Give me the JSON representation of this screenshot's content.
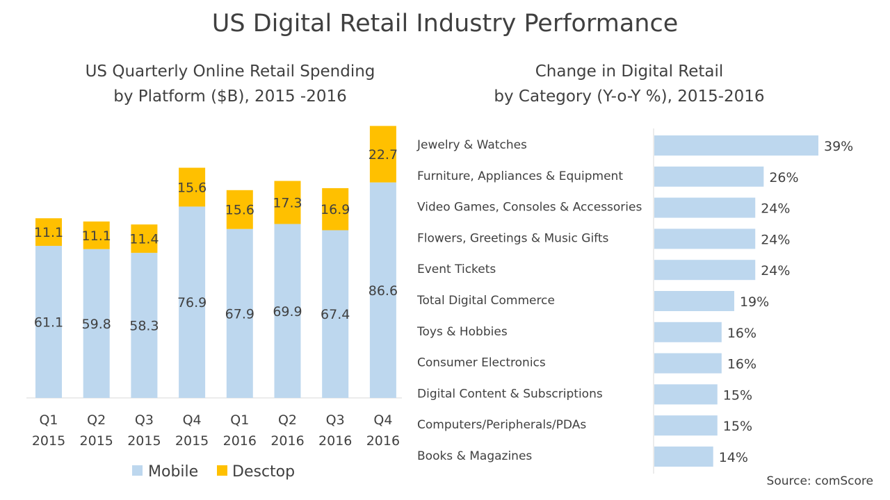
{
  "title": "US Digital Retail Industry Performance",
  "source": "Source: comScore",
  "colors": {
    "mobile": "#bdd7ee",
    "desktop": "#ffc000",
    "category_bar": "#bdd7ee",
    "text": "#404040",
    "axis": "#d9d9d9"
  },
  "chart_data": [
    {
      "type": "bar",
      "stacked": true,
      "title_lines": [
        "US Quarterly Online Retail Spending",
        "by Platform ($B), 2015 -2016"
      ],
      "categories": [
        [
          "Q1",
          "2015"
        ],
        [
          "Q2",
          "2015"
        ],
        [
          "Q3",
          "2015"
        ],
        [
          "Q4",
          "2015"
        ],
        [
          "Q1",
          "2016"
        ],
        [
          "Q2",
          "2016"
        ],
        [
          "Q3",
          "2016"
        ],
        [
          "Q4",
          "2016"
        ]
      ],
      "series": [
        {
          "name": "Mobile",
          "values": [
            61.1,
            59.8,
            58.3,
            76.9,
            67.9,
            69.9,
            67.4,
            86.6
          ]
        },
        {
          "name": "Desctop",
          "values": [
            11.1,
            11.1,
            11.4,
            15.6,
            15.6,
            17.3,
            16.9,
            22.7
          ]
        }
      ],
      "ylim": [
        0,
        120
      ],
      "legend": "bottom",
      "grid": false
    },
    {
      "type": "bar",
      "orientation": "horizontal",
      "title_lines": [
        "Change in Digital Retail",
        "by  Category (Y-o-Y %), 2015-2016"
      ],
      "categories": [
        "Jewelry & Watches",
        "Furniture, Appliances & Equipment",
        "Video Games, Consoles & Accessories",
        "Flowers, Greetings & Music Gifts",
        "Event Tickets",
        "Total Digital Commerce",
        "Toys & Hobbies",
        "Consumer Electronics",
        "Digital Content & Subscriptions",
        "Computers/Peripherals/PDAs",
        "Books & Magazines"
      ],
      "values": [
        39,
        26,
        24,
        24,
        24,
        19,
        16,
        16,
        15,
        15,
        14
      ],
      "value_labels": [
        "39%",
        "26%",
        "24%",
        "24%",
        "24%",
        "19%",
        "16%",
        "16%",
        "15%",
        "15%",
        "14%"
      ],
      "xlim": [
        0,
        40
      ],
      "grid": false
    }
  ]
}
